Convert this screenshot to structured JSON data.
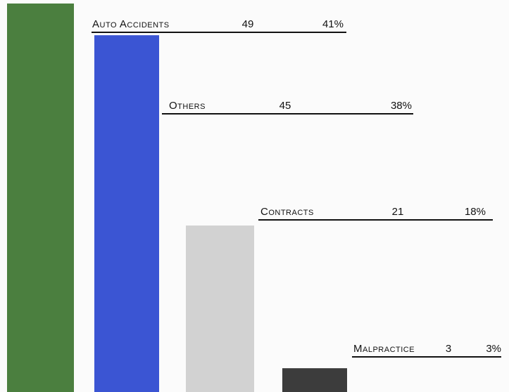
{
  "chart_data": {
    "type": "bar",
    "categories": [
      "Auto Accidents",
      "Others",
      "Contracts",
      "Malpractice"
    ],
    "values": [
      49,
      45,
      21,
      3
    ],
    "shares": [
      41,
      38,
      18,
      3
    ],
    "share_labels": [
      "41%",
      "38%",
      "18%",
      "3%"
    ],
    "colors": [
      "#4b7f3f",
      "#3b55d3",
      "#d2d2d2",
      "#3c3c3c"
    ]
  }
}
